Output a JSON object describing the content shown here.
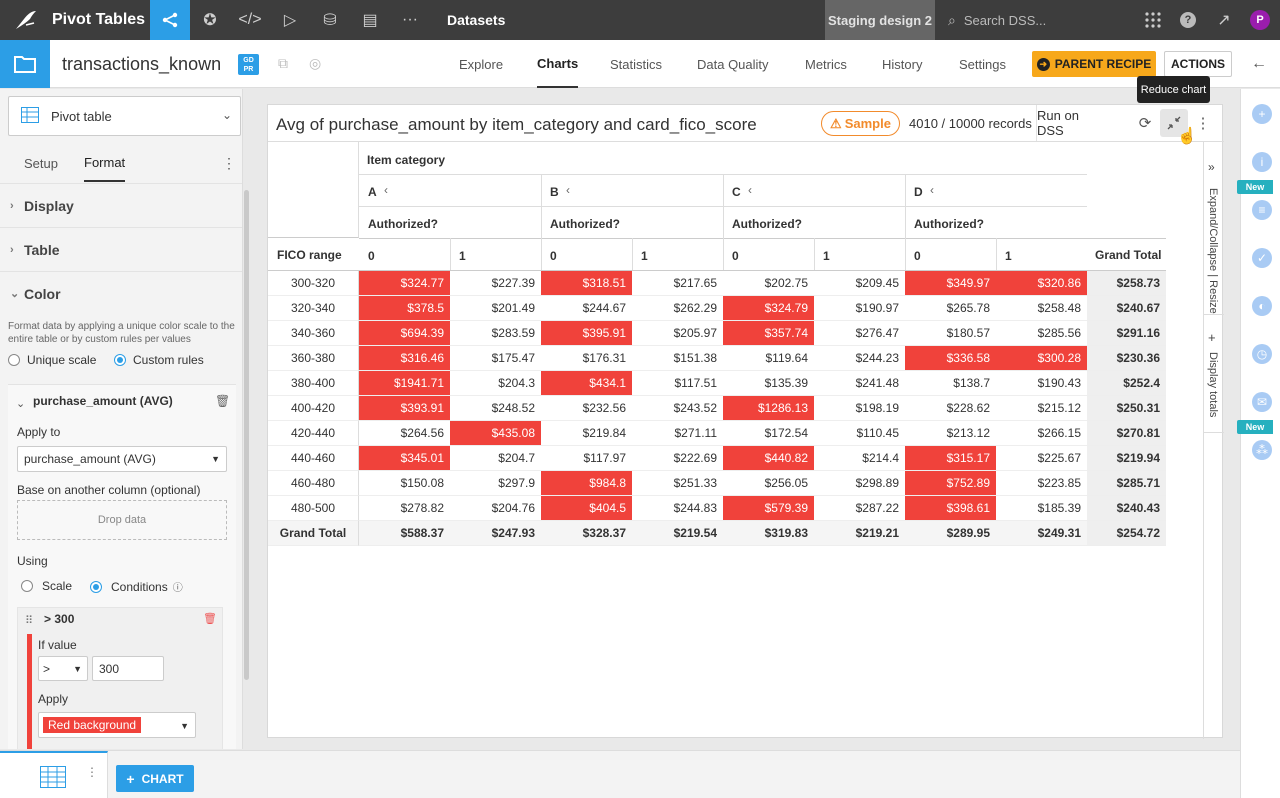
{
  "topnav": {
    "app_title": "Pivot Tables",
    "section": "Datasets",
    "project": "Staging design 2",
    "search_placeholder": "Search DSS...",
    "avatar_initial": "P"
  },
  "header": {
    "dataset_name": "transactions_known",
    "gdpr_badge": "GD PR",
    "tabs": [
      "Explore",
      "Charts",
      "Statistics",
      "Data Quality",
      "Metrics",
      "History",
      "Settings"
    ],
    "active_tab": "Charts",
    "parent_recipe": "PARENT RECIPE",
    "actions": "ACTIONS"
  },
  "left": {
    "chart_type": "Pivot table",
    "subtabs": [
      "Setup",
      "Format"
    ],
    "sections": [
      "Display",
      "Table",
      "Color"
    ],
    "color_desc": "Format data by applying a unique color scale to the entire table or by custom rules per values",
    "unique_scale": "Unique scale",
    "custom_rules": "Custom rules",
    "measure": "purchase_amount (AVG)",
    "apply_to_label": "Apply to",
    "apply_to_value": "purchase_amount (AVG)",
    "base_on_label": "Base on another column (optional)",
    "drop_data": "Drop data",
    "using_label": "Using",
    "scale": "Scale",
    "conditions": "Conditions",
    "rule_title": "> 300",
    "if_value_label": "If value",
    "operator": ">",
    "threshold": "300",
    "apply_label": "Apply",
    "apply_value": "Red background"
  },
  "chart": {
    "title": "Avg of purchase_amount by item_category and card_fico_score",
    "sample": "Sample",
    "records": "4010 / 10000 records",
    "run_on_dss": "Run on DSS",
    "tooltip": "Reduce chart",
    "side_expand": "Expand/Collapse | Resize",
    "side_totals": "Display totals"
  },
  "chart_data": {
    "type": "table",
    "row_header": "FICO range",
    "column_group_header": "Item category",
    "sub_header": "Authorized?",
    "categories": [
      "A",
      "B",
      "C",
      "D"
    ],
    "authorized_values": [
      "0",
      "1"
    ],
    "grand_total_label": "Grand Total",
    "rows": [
      {
        "label": "300-320",
        "values": [
          "$324.77",
          "$227.39",
          "$318.51",
          "$217.65",
          "$202.75",
          "$209.45",
          "$349.97",
          "$320.86"
        ],
        "total": "$258.73"
      },
      {
        "label": "320-340",
        "values": [
          "$378.5",
          "$201.49",
          "$244.67",
          "$262.29",
          "$324.79",
          "$190.97",
          "$265.78",
          "$258.48"
        ],
        "total": "$240.67"
      },
      {
        "label": "340-360",
        "values": [
          "$694.39",
          "$283.59",
          "$395.91",
          "$205.97",
          "$357.74",
          "$276.47",
          "$180.57",
          "$285.56"
        ],
        "total": "$291.16"
      },
      {
        "label": "360-380",
        "values": [
          "$316.46",
          "$175.47",
          "$176.31",
          "$151.38",
          "$119.64",
          "$244.23",
          "$336.58",
          "$300.28"
        ],
        "total": "$230.36"
      },
      {
        "label": "380-400",
        "values": [
          "$1941.71",
          "$204.3",
          "$434.1",
          "$117.51",
          "$135.39",
          "$241.48",
          "$138.7",
          "$190.43"
        ],
        "total": "$252.4"
      },
      {
        "label": "400-420",
        "values": [
          "$393.91",
          "$248.52",
          "$232.56",
          "$243.52",
          "$1286.13",
          "$198.19",
          "$228.62",
          "$215.12"
        ],
        "total": "$250.31"
      },
      {
        "label": "420-440",
        "values": [
          "$264.56",
          "$435.08",
          "$219.84",
          "$271.11",
          "$172.54",
          "$110.45",
          "$213.12",
          "$266.15"
        ],
        "total": "$270.81"
      },
      {
        "label": "440-460",
        "values": [
          "$345.01",
          "$204.7",
          "$117.97",
          "$222.69",
          "$440.82",
          "$214.4",
          "$315.17",
          "$225.67"
        ],
        "total": "$219.94"
      },
      {
        "label": "460-480",
        "values": [
          "$150.08",
          "$297.9",
          "$984.8",
          "$251.33",
          "$256.05",
          "$298.89",
          "$752.89",
          "$223.85"
        ],
        "total": "$285.71"
      },
      {
        "label": "480-500",
        "values": [
          "$278.82",
          "$204.76",
          "$404.5",
          "$244.83",
          "$579.39",
          "$287.22",
          "$398.61",
          "$185.39"
        ],
        "total": "$240.43"
      }
    ],
    "column_totals": [
      "$588.37",
      "$247.93",
      "$328.37",
      "$219.54",
      "$319.83",
      "$219.21",
      "$289.95",
      "$249.31"
    ],
    "grand_total": "$254.72",
    "highlight_rule": "> 300",
    "highlight_color": "#f0423b"
  },
  "bottom": {
    "chart_button": "CHART"
  },
  "rail": {
    "new_badge": "New"
  }
}
